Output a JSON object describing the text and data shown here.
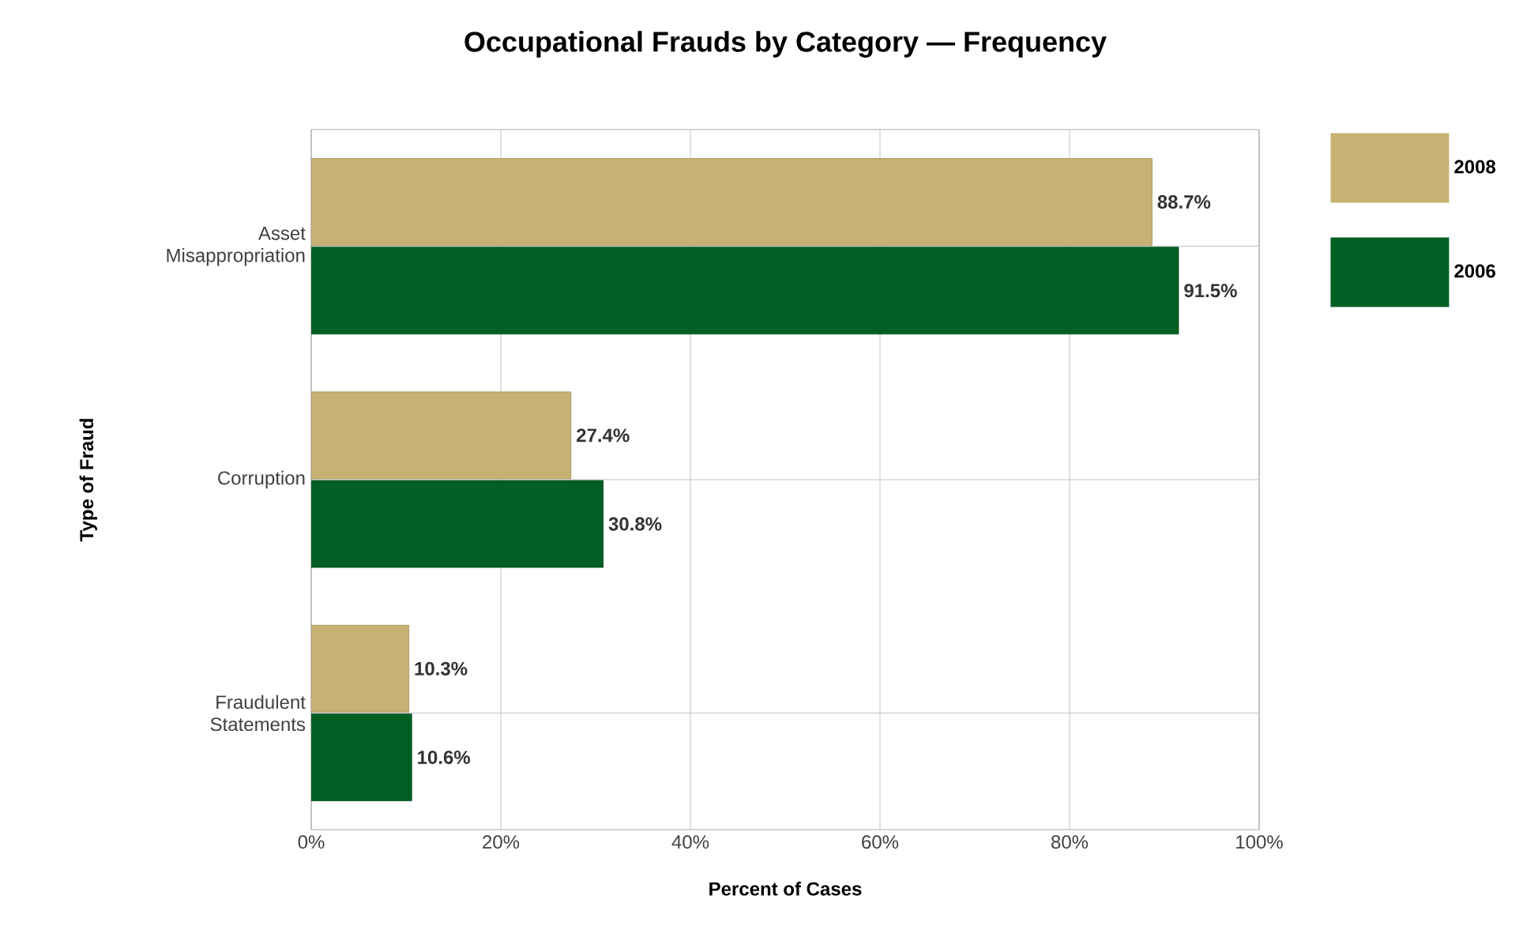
{
  "chart_data": {
    "type": "bar",
    "orientation": "horizontal",
    "title": "Occupational Frauds by Category — Frequency",
    "xlabel": "Percent of Cases",
    "ylabel": "Type of Fraud",
    "categories": [
      "Asset Misappropriation",
      "Corruption",
      "Fraudulent Statements"
    ],
    "series": [
      {
        "name": "2008",
        "color": "#c8b273",
        "values": [
          88.7,
          27.4,
          10.3
        ],
        "value_labels": [
          "88.7%",
          "27.4%",
          "10.3%"
        ]
      },
      {
        "name": "2006",
        "color": "#005f22",
        "values": [
          91.5,
          30.8,
          10.6
        ],
        "value_labels": [
          "91.5%",
          "30.8%",
          "10.6%"
        ]
      }
    ],
    "xlim": [
      0,
      100
    ],
    "xticks": [
      {
        "value": 0,
        "label": "0%"
      },
      {
        "value": 20,
        "label": "20%"
      },
      {
        "value": 40,
        "label": "40%"
      },
      {
        "value": 60,
        "label": "60%"
      },
      {
        "value": 80,
        "label": "80%"
      },
      {
        "value": 100,
        "label": "100%"
      }
    ],
    "grid": true,
    "legend": "top right"
  }
}
